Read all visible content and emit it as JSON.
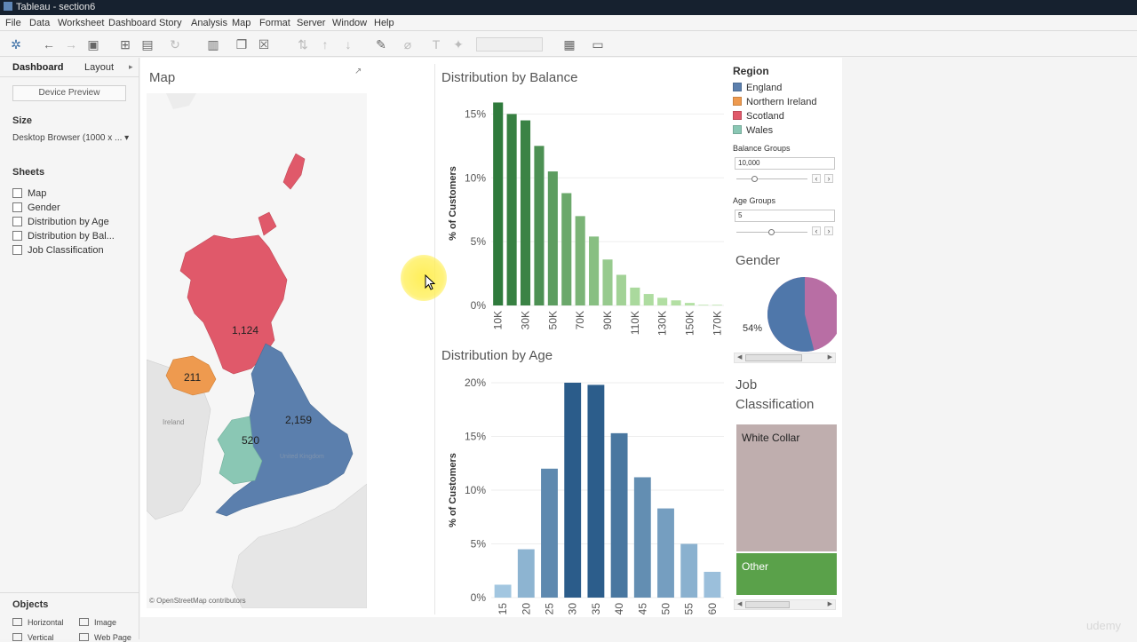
{
  "window": {
    "title": "Tableau - section6"
  },
  "menu": [
    "File",
    "Data",
    "Worksheet",
    "Dashboard",
    "Story",
    "Analysis",
    "Map",
    "Format",
    "Server",
    "Window",
    "Help"
  ],
  "left_panel": {
    "tab_dashboard": "Dashboard",
    "tab_layout": "Layout",
    "device_preview": "Device Preview",
    "size_heading": "Size",
    "size_value": "Desktop Browser (1000 x ...",
    "sheets_heading": "Sheets",
    "sheets": [
      "Map",
      "Gender",
      "Distribution by Age",
      "Distribution by Bal...",
      "Job Classification"
    ],
    "objects_heading": "Objects",
    "objects": [
      "Horizontal",
      "Image",
      "Vertical",
      "Web Page"
    ]
  },
  "map": {
    "title": "Map",
    "credit": "© OpenStreetMap contributors",
    "region_labels": {
      "scotland": "1,124",
      "northern_ireland": "211",
      "england": "2,159",
      "wales": "520"
    },
    "basemap_labels": {
      "ireland": "Ireland",
      "uk": "United Kingdom"
    }
  },
  "legend": {
    "title": "Region",
    "items": [
      {
        "label": "England",
        "color": "#5b7fad"
      },
      {
        "label": "Northern Ireland",
        "color": "#ee9a4f"
      },
      {
        "label": "Scotland",
        "color": "#e0596a"
      },
      {
        "label": "Wales",
        "color": "#8ac7b4"
      }
    ]
  },
  "parameters": {
    "balance_label": "Balance Groups",
    "balance_value": "10,000",
    "age_label": "Age Groups",
    "age_value": "5"
  },
  "gender": {
    "title": "Gender",
    "label": "54%"
  },
  "job": {
    "title": "Job Classification",
    "title_line1": "Job",
    "title_line2": "Classification",
    "white_collar": "White Collar",
    "other": "Other"
  },
  "chart_data": [
    {
      "type": "bar",
      "title": "Distribution by Balance",
      "ylabel": "% of Customers",
      "xlabel": "",
      "ylim": [
        0,
        16
      ],
      "yticks": [
        "0%",
        "5%",
        "10%",
        "15%"
      ],
      "categories": [
        "10K",
        "20K",
        "30K",
        "40K",
        "50K",
        "60K",
        "70K",
        "80K",
        "90K",
        "100K",
        "110K",
        "120K",
        "130K",
        "140K",
        "150K",
        "160K",
        "170K"
      ],
      "visible_tick_labels": [
        "10K",
        "30K",
        "50K",
        "70K",
        "90K",
        "110K",
        "130K",
        "150K",
        "170K"
      ],
      "values": [
        15.9,
        15.0,
        14.5,
        12.5,
        10.5,
        8.8,
        7.0,
        5.4,
        3.6,
        2.4,
        1.4,
        0.9,
        0.6,
        0.4,
        0.2,
        0.05,
        0.05
      ]
    },
    {
      "type": "bar",
      "title": "Distribution by Age",
      "ylabel": "% of Customers",
      "xlabel": "",
      "ylim": [
        0,
        20
      ],
      "yticks": [
        "0%",
        "5%",
        "10%",
        "15%",
        "20%"
      ],
      "categories": [
        "15",
        "20",
        "25",
        "30",
        "35",
        "40",
        "45",
        "50",
        "55",
        "60"
      ],
      "values": [
        1.2,
        4.5,
        12.0,
        20.0,
        19.8,
        15.3,
        11.2,
        8.3,
        5.0,
        2.4
      ]
    },
    {
      "type": "pie",
      "title": "Gender",
      "slices": [
        {
          "value": 54,
          "color": "#4f77aa"
        },
        {
          "value": 46,
          "color": "#b86ea4"
        }
      ]
    },
    {
      "type": "treemap",
      "title": "Job Classification",
      "categories": [
        "White Collar",
        "Other"
      ],
      "values": [
        75,
        25
      ],
      "colors": [
        "#bfaeae",
        "#5aa14a"
      ]
    }
  ]
}
